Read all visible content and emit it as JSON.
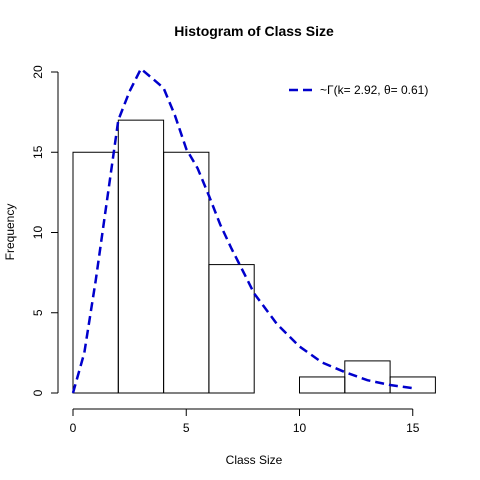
{
  "chart_data": {
    "type": "histogram",
    "title": "Histogram of Class Size",
    "xlabel": "Class Size",
    "ylabel": "Frequency",
    "xlim": [
      0,
      16
    ],
    "ylim": [
      0,
      20
    ],
    "x_ticks": [
      0,
      5,
      10,
      15
    ],
    "y_ticks": [
      0,
      5,
      10,
      15,
      20
    ],
    "bins": [
      {
        "from": 0,
        "to": 2,
        "count": 15
      },
      {
        "from": 2,
        "to": 4,
        "count": 17
      },
      {
        "from": 4,
        "to": 6,
        "count": 15
      },
      {
        "from": 6,
        "to": 8,
        "count": 8
      },
      {
        "from": 8,
        "to": 10,
        "count": 0
      },
      {
        "from": 10,
        "to": 12,
        "count": 1
      },
      {
        "from": 12,
        "to": 14,
        "count": 2
      },
      {
        "from": 14,
        "to": 16,
        "count": 1
      }
    ],
    "series": [
      {
        "name": "~Γ(k= 2.92, θ= 0.61)",
        "style": "dashed",
        "color": "#0000cc",
        "x": [
          0,
          0.5,
          1,
          1.5,
          2,
          2.5,
          3,
          3.5,
          4,
          4.5,
          5,
          5.5,
          6,
          6.5,
          7,
          7.5,
          8,
          9,
          10,
          11,
          12,
          13,
          14,
          15
        ],
        "y": [
          0,
          2.5,
          7,
          12,
          17,
          18.8,
          20.2,
          19.6,
          19,
          17.3,
          15.2,
          14,
          12.3,
          10.5,
          9,
          7.6,
          6.2,
          4.3,
          2.9,
          1.9,
          1.3,
          0.8,
          0.5,
          0.3
        ]
      }
    ],
    "legend": {
      "position": "top-right",
      "text": "~Γ(k= 2.92, θ= 0.61)"
    },
    "grid": false
  }
}
